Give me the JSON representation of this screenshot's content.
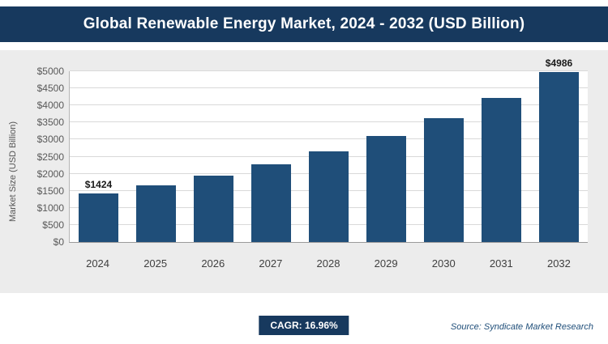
{
  "header": {
    "title": "Global Renewable Energy Market, 2024 - 2032 (USD Billion)"
  },
  "chart_data": {
    "type": "bar",
    "title": "Global Renewable Energy Market, 2024 - 2032 (USD Billion)",
    "categories": [
      "2024",
      "2025",
      "2026",
      "2027",
      "2028",
      "2029",
      "2030",
      "2031",
      "2032"
    ],
    "values": [
      1424,
      1660,
      1950,
      2270,
      2650,
      3100,
      3620,
      4230,
      4986
    ],
    "bar_labels": [
      "$1424",
      "",
      "",
      "",
      "",
      "",
      "",
      "",
      "$4986"
    ],
    "xlabel": "",
    "ylabel": "Market Size (USD Billion)",
    "ylim": [
      0,
      5000
    ],
    "ytick_labels": [
      "$0",
      "$500",
      "$1000",
      "$1500",
      "$2000",
      "$2500",
      "$3000",
      "$3500",
      "$4000",
      "$4500",
      "$5000"
    ],
    "grid": "horizontal",
    "legend": "none"
  },
  "footer": {
    "cagr_label": "CAGR: 16.96%",
    "source": "Source: Syndicate Market Research"
  },
  "colors": {
    "bar": "#1F4E79",
    "header_bg": "#17395E",
    "badge_bg": "#17395E",
    "panel_bg": "#ECECEC",
    "source_text": "#1F4E79"
  }
}
